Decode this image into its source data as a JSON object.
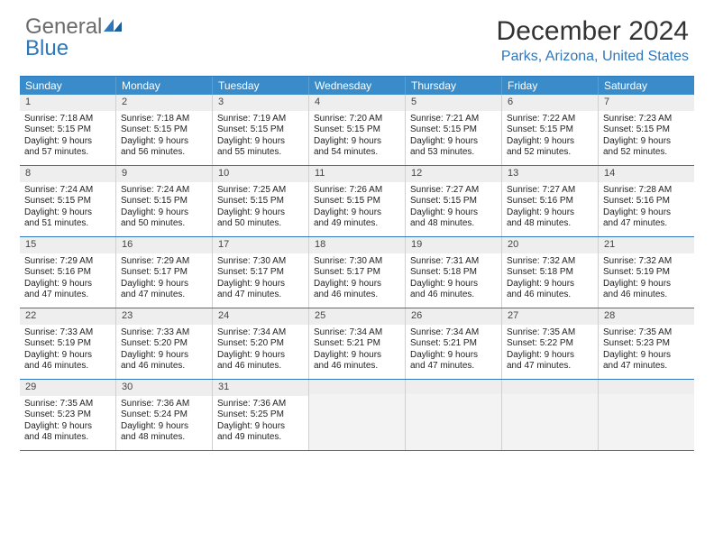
{
  "logo": {
    "part1": "General",
    "part2": "Blue"
  },
  "title": "December 2024",
  "location": "Parks, Arizona, United States",
  "colors": {
    "accent": "#2f77bb",
    "header_bg": "#3a8bc9",
    "daynum_bg": "#eeeeee",
    "empty_bg": "#f3f3f3",
    "border": "#2f77bb"
  },
  "dow": [
    "Sunday",
    "Monday",
    "Tuesday",
    "Wednesday",
    "Thursday",
    "Friday",
    "Saturday"
  ],
  "weeks": [
    [
      {
        "n": "1",
        "sr": "Sunrise: 7:18 AM",
        "ss": "Sunset: 5:15 PM",
        "d1": "Daylight: 9 hours",
        "d2": "and 57 minutes."
      },
      {
        "n": "2",
        "sr": "Sunrise: 7:18 AM",
        "ss": "Sunset: 5:15 PM",
        "d1": "Daylight: 9 hours",
        "d2": "and 56 minutes."
      },
      {
        "n": "3",
        "sr": "Sunrise: 7:19 AM",
        "ss": "Sunset: 5:15 PM",
        "d1": "Daylight: 9 hours",
        "d2": "and 55 minutes."
      },
      {
        "n": "4",
        "sr": "Sunrise: 7:20 AM",
        "ss": "Sunset: 5:15 PM",
        "d1": "Daylight: 9 hours",
        "d2": "and 54 minutes."
      },
      {
        "n": "5",
        "sr": "Sunrise: 7:21 AM",
        "ss": "Sunset: 5:15 PM",
        "d1": "Daylight: 9 hours",
        "d2": "and 53 minutes."
      },
      {
        "n": "6",
        "sr": "Sunrise: 7:22 AM",
        "ss": "Sunset: 5:15 PM",
        "d1": "Daylight: 9 hours",
        "d2": "and 52 minutes."
      },
      {
        "n": "7",
        "sr": "Sunrise: 7:23 AM",
        "ss": "Sunset: 5:15 PM",
        "d1": "Daylight: 9 hours",
        "d2": "and 52 minutes."
      }
    ],
    [
      {
        "n": "8",
        "sr": "Sunrise: 7:24 AM",
        "ss": "Sunset: 5:15 PM",
        "d1": "Daylight: 9 hours",
        "d2": "and 51 minutes."
      },
      {
        "n": "9",
        "sr": "Sunrise: 7:24 AM",
        "ss": "Sunset: 5:15 PM",
        "d1": "Daylight: 9 hours",
        "d2": "and 50 minutes."
      },
      {
        "n": "10",
        "sr": "Sunrise: 7:25 AM",
        "ss": "Sunset: 5:15 PM",
        "d1": "Daylight: 9 hours",
        "d2": "and 50 minutes."
      },
      {
        "n": "11",
        "sr": "Sunrise: 7:26 AM",
        "ss": "Sunset: 5:15 PM",
        "d1": "Daylight: 9 hours",
        "d2": "and 49 minutes."
      },
      {
        "n": "12",
        "sr": "Sunrise: 7:27 AM",
        "ss": "Sunset: 5:15 PM",
        "d1": "Daylight: 9 hours",
        "d2": "and 48 minutes."
      },
      {
        "n": "13",
        "sr": "Sunrise: 7:27 AM",
        "ss": "Sunset: 5:16 PM",
        "d1": "Daylight: 9 hours",
        "d2": "and 48 minutes."
      },
      {
        "n": "14",
        "sr": "Sunrise: 7:28 AM",
        "ss": "Sunset: 5:16 PM",
        "d1": "Daylight: 9 hours",
        "d2": "and 47 minutes."
      }
    ],
    [
      {
        "n": "15",
        "sr": "Sunrise: 7:29 AM",
        "ss": "Sunset: 5:16 PM",
        "d1": "Daylight: 9 hours",
        "d2": "and 47 minutes."
      },
      {
        "n": "16",
        "sr": "Sunrise: 7:29 AM",
        "ss": "Sunset: 5:17 PM",
        "d1": "Daylight: 9 hours",
        "d2": "and 47 minutes."
      },
      {
        "n": "17",
        "sr": "Sunrise: 7:30 AM",
        "ss": "Sunset: 5:17 PM",
        "d1": "Daylight: 9 hours",
        "d2": "and 47 minutes."
      },
      {
        "n": "18",
        "sr": "Sunrise: 7:30 AM",
        "ss": "Sunset: 5:17 PM",
        "d1": "Daylight: 9 hours",
        "d2": "and 46 minutes."
      },
      {
        "n": "19",
        "sr": "Sunrise: 7:31 AM",
        "ss": "Sunset: 5:18 PM",
        "d1": "Daylight: 9 hours",
        "d2": "and 46 minutes."
      },
      {
        "n": "20",
        "sr": "Sunrise: 7:32 AM",
        "ss": "Sunset: 5:18 PM",
        "d1": "Daylight: 9 hours",
        "d2": "and 46 minutes."
      },
      {
        "n": "21",
        "sr": "Sunrise: 7:32 AM",
        "ss": "Sunset: 5:19 PM",
        "d1": "Daylight: 9 hours",
        "d2": "and 46 minutes."
      }
    ],
    [
      {
        "n": "22",
        "sr": "Sunrise: 7:33 AM",
        "ss": "Sunset: 5:19 PM",
        "d1": "Daylight: 9 hours",
        "d2": "and 46 minutes."
      },
      {
        "n": "23",
        "sr": "Sunrise: 7:33 AM",
        "ss": "Sunset: 5:20 PM",
        "d1": "Daylight: 9 hours",
        "d2": "and 46 minutes."
      },
      {
        "n": "24",
        "sr": "Sunrise: 7:34 AM",
        "ss": "Sunset: 5:20 PM",
        "d1": "Daylight: 9 hours",
        "d2": "and 46 minutes."
      },
      {
        "n": "25",
        "sr": "Sunrise: 7:34 AM",
        "ss": "Sunset: 5:21 PM",
        "d1": "Daylight: 9 hours",
        "d2": "and 46 minutes."
      },
      {
        "n": "26",
        "sr": "Sunrise: 7:34 AM",
        "ss": "Sunset: 5:21 PM",
        "d1": "Daylight: 9 hours",
        "d2": "and 47 minutes."
      },
      {
        "n": "27",
        "sr": "Sunrise: 7:35 AM",
        "ss": "Sunset: 5:22 PM",
        "d1": "Daylight: 9 hours",
        "d2": "and 47 minutes."
      },
      {
        "n": "28",
        "sr": "Sunrise: 7:35 AM",
        "ss": "Sunset: 5:23 PM",
        "d1": "Daylight: 9 hours",
        "d2": "and 47 minutes."
      }
    ],
    [
      {
        "n": "29",
        "sr": "Sunrise: 7:35 AM",
        "ss": "Sunset: 5:23 PM",
        "d1": "Daylight: 9 hours",
        "d2": "and 48 minutes."
      },
      {
        "n": "30",
        "sr": "Sunrise: 7:36 AM",
        "ss": "Sunset: 5:24 PM",
        "d1": "Daylight: 9 hours",
        "d2": "and 48 minutes."
      },
      {
        "n": "31",
        "sr": "Sunrise: 7:36 AM",
        "ss": "Sunset: 5:25 PM",
        "d1": "Daylight: 9 hours",
        "d2": "and 49 minutes."
      },
      {
        "empty": true
      },
      {
        "empty": true
      },
      {
        "empty": true
      },
      {
        "empty": true
      }
    ]
  ]
}
